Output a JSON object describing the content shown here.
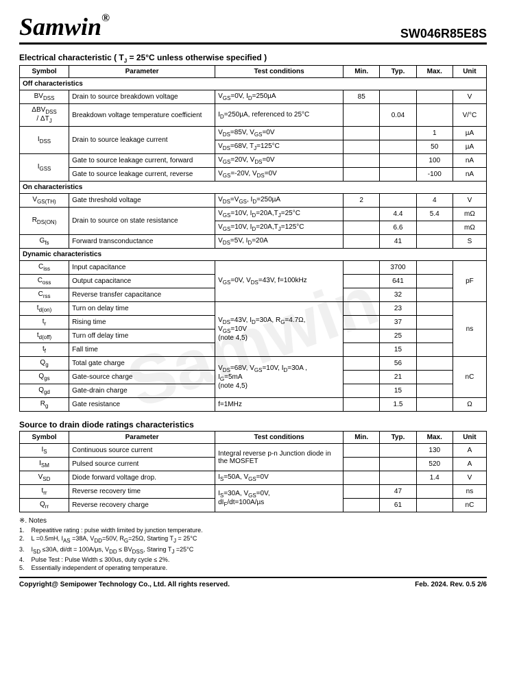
{
  "header": {
    "brand": "Samwin",
    "brand_reg": "®",
    "part": "SW046R85E8S"
  },
  "section1": {
    "title": "Electrical characteristic ( T",
    "title_sub": "J",
    "title_tail": " = 25°C unless otherwise specified )",
    "cols": {
      "sym": "Symbol",
      "param": "Parameter",
      "cond": "Test conditions",
      "min": "Min.",
      "typ": "Typ.",
      "max": "Max.",
      "unit": "Unit"
    },
    "sub1": "Off characteristics",
    "rows1": [
      {
        "sym": "BV<sub>DSS</sub>",
        "param": "Drain to source breakdown voltage",
        "cond": "V<sub>GS</sub>=0V, I<sub>D</sub>=250µA",
        "min": "85",
        "typ": "",
        "max": "",
        "unit": "V"
      },
      {
        "sym": "ΔBV<sub>DSS</sub><br>/ ΔT<sub>J</sub>",
        "param": "Breakdown voltage temperature coefficient",
        "cond": "I<sub>D</sub>=250µA, referenced to 25°C",
        "min": "",
        "typ": "0.04",
        "max": "",
        "unit": "V/°C"
      },
      {
        "sym": "I<sub>DSS</sub>",
        "row1": {
          "param": "Drain to source leakage current",
          "cond": "V<sub>DS</sub>=85V, V<sub>GS</sub>=0V",
          "min": "",
          "typ": "",
          "max": "1",
          "unit": "µA"
        },
        "row2": {
          "cond": "V<sub>DS</sub>=68V, T<sub>J</sub>=125°C",
          "min": "",
          "typ": "",
          "max": "50",
          "unit": "µA"
        }
      },
      {
        "sym": "I<sub>GSS</sub>",
        "row1": {
          "param": "Gate to source leakage current, forward",
          "cond": "V<sub>GS</sub>=20V, V<sub>DS</sub>=0V",
          "min": "",
          "typ": "",
          "max": "100",
          "unit": "nA"
        },
        "row2": {
          "param": "Gate to source leakage current, reverse",
          "cond": "V<sub>GS</sub>=-20V, V<sub>DS</sub>=0V",
          "min": "",
          "typ": "",
          "max": "-100",
          "unit": "nA"
        }
      }
    ],
    "sub2": "On characteristics",
    "rows2": [
      {
        "sym": "V<sub>GS(TH)</sub>",
        "param": "Gate threshold voltage",
        "cond": "V<sub>DS</sub>=V<sub>GS</sub>, I<sub>D</sub>=250µA",
        "min": "2",
        "typ": "",
        "max": "4",
        "unit": "V"
      },
      {
        "sym": "R<sub>DS(ON)</sub>",
        "row1": {
          "param": "Drain to source on state resistance",
          "cond": "V<sub>GS</sub>=10V, I<sub>D</sub>=20A,T<sub>J</sub>=25°C",
          "min": "",
          "typ": "4.4",
          "max": "5.4",
          "unit": "mΩ"
        },
        "row2": {
          "cond": "V<sub>GS</sub>=10V, I<sub>D</sub>=20A,T<sub>J</sub>=125°C",
          "min": "",
          "typ": "6.6",
          "max": "",
          "unit": "mΩ"
        }
      },
      {
        "sym": "G<sub>fs</sub>",
        "param": "Forward transconductance",
        "cond": "V<sub>DS</sub>=5V, I<sub>D</sub>=20A",
        "min": "",
        "typ": "41",
        "max": "",
        "unit": "S"
      }
    ],
    "sub3": "Dynamic characteristics",
    "rows3": {
      "cap": [
        {
          "sym": "C<sub>iss</sub>",
          "param": "Input capacitance",
          "typ": "3700"
        },
        {
          "sym": "C<sub>oss</sub>",
          "param": "Output capacitance",
          "typ": "641"
        },
        {
          "sym": "C<sub>rss</sub>",
          "param": "Reverse transfer capacitance",
          "typ": "32"
        }
      ],
      "cap_cond": "V<sub>GS</sub>=0V, V<sub>DS</sub>=43V, f=100kHz",
      "cap_unit": "pF",
      "time": [
        {
          "sym": "t<sub>d(on)</sub>",
          "param": "Turn on delay time",
          "typ": "23"
        },
        {
          "sym": "t<sub>r</sub>",
          "param": "Rising time",
          "typ": "37"
        },
        {
          "sym": "t<sub>d(off)</sub>",
          "param": "Turn off delay time",
          "typ": "25"
        },
        {
          "sym": "t<sub>f</sub>",
          "param": "Fall time",
          "typ": "15"
        }
      ],
      "time_cond": "V<sub>DS</sub>=43V, I<sub>D</sub>=30A, R<sub>G</sub>=4.7Ω,<br>V<sub>GS</sub>=10V<br>(note 4,5)",
      "time_unit": "ns",
      "chg": [
        {
          "sym": "Q<sub>g</sub>",
          "param": "Total gate charge",
          "typ": "56"
        },
        {
          "sym": "Q<sub>gs</sub>",
          "param": "Gate-source charge",
          "typ": "21"
        },
        {
          "sym": "Q<sub>gd</sub>",
          "param": "Gate-drain charge",
          "typ": "15"
        }
      ],
      "chg_cond": "V<sub>DS</sub>=68V, V<sub>GS</sub>=10V, I<sub>D</sub>=30A ,<br>I<sub>G</sub>=5mA<br>(note 4,5)",
      "chg_unit": "nC",
      "rg": {
        "sym": "R<sub>g</sub>",
        "param": "Gate resistance",
        "cond": "f=1MHz",
        "typ": "1.5",
        "unit": "Ω"
      }
    }
  },
  "section2": {
    "title": "Source to drain diode ratings characteristics",
    "rows": [
      {
        "sym": "I<sub>S</sub>",
        "param": "Continuous source current",
        "max": "130",
        "unit": "A"
      },
      {
        "sym": "I<sub>SM</sub>",
        "param": "Pulsed source current",
        "max": "520",
        "unit": "A"
      }
    ],
    "diode_cond": "Integral reverse p-n Junction diode in the MOSFET",
    "vsd": {
      "sym": "V<sub>SD</sub>",
      "param": "Diode forward voltage drop.",
      "cond": "I<sub>S</sub>=50A, V<sub>GS</sub>=0V",
      "max": "1.4",
      "unit": "V"
    },
    "rr": [
      {
        "sym": "t<sub>rr</sub>",
        "param": "Reverse recovery time",
        "typ": "47",
        "unit": "ns"
      },
      {
        "sym": "Q<sub>rr</sub>",
        "param": "Reverse recovery charge",
        "typ": "61",
        "unit": "nC"
      }
    ],
    "rr_cond": "I<sub>S</sub>=30A, V<sub>GS</sub>=0V,<br>dI<sub>F</sub>/dt=100A/µs"
  },
  "notes": {
    "title": "※. Notes",
    "items": [
      "Repeatitive rating : pulse width limited by junction temperature.",
      "L =0.5mH, I<sub>AS</sub> =38A, V<sub>DD</sub>=50V, R<sub>G</sub>=25Ω, Starting T<sub>J</sub> = 25°C",
      "I<sub>SD</sub> ≤30A, di/dt = 100A/µs, V<sub>DD</sub> ≤ BV<sub>DSS</sub>, Staring T<sub>J</sub> =25°C",
      "Pulse Test : Pulse Width ≤ 300us, duty cycle ≤ 2%.",
      "Essentially independent of operating temperature."
    ]
  },
  "footer": {
    "left": "Copyright@ Semipower Technology Co., Ltd. All rights reserved.",
    "right": "Feb. 2024. Rev. 0.5   2/6"
  }
}
